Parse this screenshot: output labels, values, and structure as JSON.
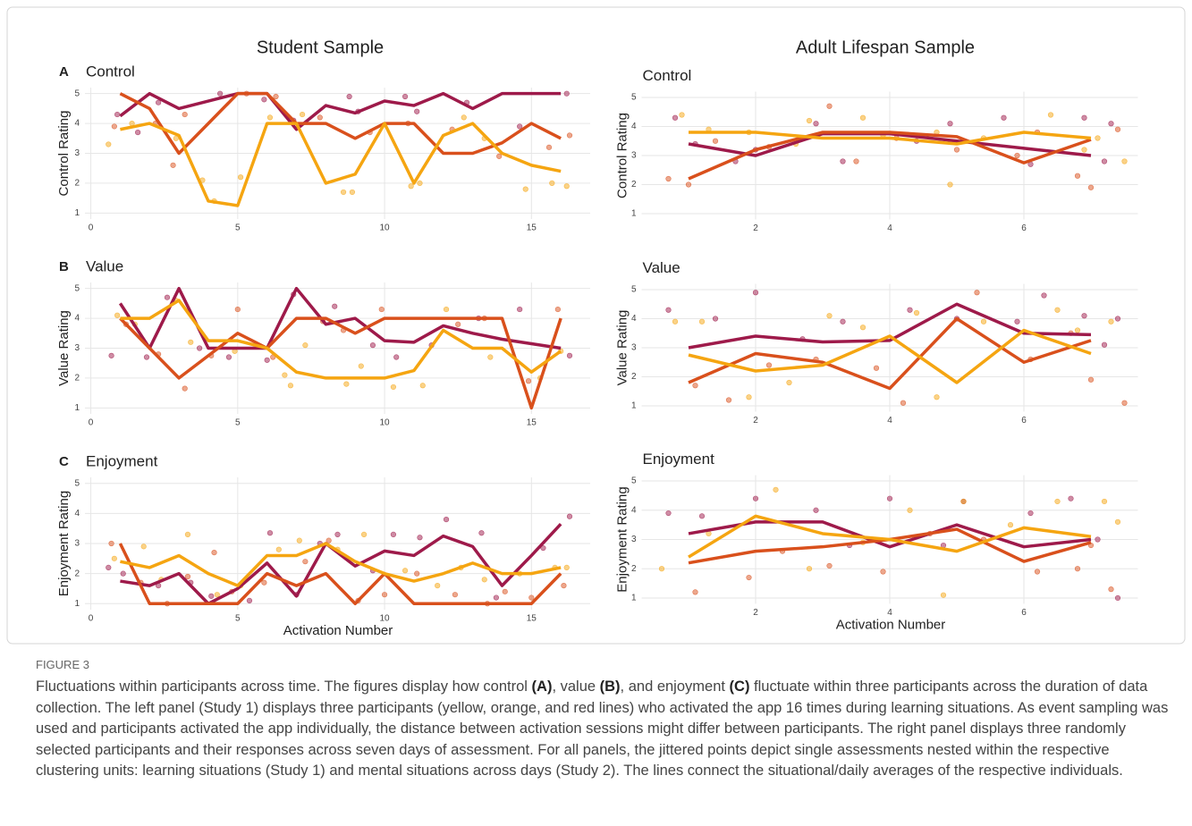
{
  "column_titles": [
    "Student Sample",
    "Adult Lifespan Sample"
  ],
  "figure_label": "FIGURE 3",
  "caption": [
    "Fluctuations within participants across time. The figures display how control ",
    "(A)",
    ", value ",
    "(B)",
    ", and enjoyment ",
    "(C)",
    " fluctuate within three participants across the duration of data collection. The left panel (Study 1) displays three participants (yellow, orange, and red lines) who activated the app 16 times during learning situations. As event sampling was used and participants activated the app individually, the distance between activation sessions might differ between participants. The right panel displays three randomly selected participants and their responses across seven days of assessment. For all panels, the jittered points depict single assessments nested within the respective clustering units: learning situations (Study 1) and mental situations across days (Study 2). The lines connect the situational/daily averages of the respective individuals."
  ],
  "chart_data": [
    {
      "type": "line",
      "panel": "A",
      "title": "Control",
      "ylabel": "Control Rating",
      "grid": true,
      "x": [
        1,
        2,
        3,
        4,
        5,
        6,
        7,
        8,
        9,
        10,
        11,
        12,
        13,
        14,
        15,
        16
      ],
      "xlim": [
        -0.2,
        17
      ],
      "xticks": [
        0,
        5,
        10,
        15
      ],
      "ylim": [
        0.8,
        5.2
      ],
      "yticks": [
        1,
        2,
        3,
        4,
        5
      ],
      "series": [
        {
          "color": "#9e1a4a",
          "values": [
            4.25,
            5,
            4.5,
            4.75,
            5,
            5,
            3.8,
            4.6,
            4.35,
            4.75,
            4.6,
            5,
            4.5,
            5,
            5,
            5
          ]
        },
        {
          "color": "#d9501c",
          "values": [
            5,
            4.5,
            3,
            4,
            5,
            5,
            4,
            4,
            3.5,
            4,
            4,
            3,
            3,
            3.35,
            4,
            3.5
          ]
        },
        {
          "color": "#f5a511",
          "values": [
            3.8,
            4,
            3.6,
            1.4,
            1.25,
            4,
            4,
            2,
            2.3,
            4,
            2,
            3.6,
            4,
            3,
            2.6,
            2.4
          ]
        }
      ],
      "points": [
        {
          "color": "#9e1a4a",
          "x": [
            0.9,
            1.6,
            2.3,
            4.4,
            5.9,
            6.9,
            8.8,
            9.1,
            10.7,
            11.1,
            12.8,
            14.6,
            16.2
          ],
          "y": [
            4.3,
            3.7,
            4.7,
            5,
            4.8,
            4.1,
            4.9,
            4.4,
            4.9,
            4.4,
            4.7,
            3.9,
            5
          ]
        },
        {
          "color": "#d9501c",
          "x": [
            0.8,
            2.2,
            2.8,
            3.2,
            5.3,
            6.3,
            7.8,
            9.5,
            10.8,
            12.3,
            13.9,
            15.6,
            16.3
          ],
          "y": [
            3.9,
            4,
            2.6,
            4.3,
            5,
            4.9,
            4.2,
            3.7,
            4,
            3.8,
            2.9,
            3.2,
            3.6
          ]
        },
        {
          "color": "#f5a511",
          "x": [
            0.6,
            1.4,
            2.9,
            3.8,
            4.2,
            5.1,
            6.1,
            7.2,
            8.6,
            8.9,
            10.9,
            11.2,
            12.7,
            13.4,
            14.8,
            15.7,
            16.2
          ],
          "y": [
            3.3,
            4,
            3.5,
            2.1,
            1.4,
            2.2,
            4.2,
            4.3,
            1.7,
            1.7,
            1.9,
            2,
            4.2,
            3.5,
            1.8,
            2,
            1.9
          ]
        }
      ]
    },
    {
      "type": "line",
      "panel": "B",
      "title": "Value",
      "ylabel": "Value Rating",
      "grid": true,
      "x": [
        1,
        2,
        3,
        4,
        5,
        6,
        7,
        8,
        9,
        10,
        11,
        12,
        13,
        14,
        15,
        16
      ],
      "xlim": [
        -0.2,
        17
      ],
      "xticks": [
        0,
        5,
        10,
        15
      ],
      "ylim": [
        0.8,
        5.2
      ],
      "yticks": [
        1,
        2,
        3,
        4,
        5
      ],
      "series": [
        {
          "color": "#9e1a4a",
          "values": [
            4.5,
            3,
            5,
            3,
            3,
            3,
            5,
            3.8,
            4,
            3.25,
            3.2,
            3.75,
            3.5,
            3.3,
            3.15,
            3
          ]
        },
        {
          "color": "#d9501c",
          "values": [
            4,
            3,
            2,
            2.75,
            3.5,
            3,
            4,
            4,
            3.5,
            4,
            4,
            4,
            4,
            4,
            1,
            4
          ]
        },
        {
          "color": "#f5a511",
          "values": [
            4,
            4,
            4.6,
            3.25,
            3.25,
            3,
            2.2,
            2,
            2,
            2,
            2.25,
            3.6,
            3,
            3,
            2.2,
            2.9
          ]
        }
      ],
      "points": [
        {
          "color": "#9e1a4a",
          "x": [
            0.7,
            1.9,
            2.6,
            3.7,
            4.7,
            6,
            6.9,
            8.3,
            9.6,
            10.4,
            11.6,
            13.2,
            14.6,
            16.3
          ],
          "y": [
            2.75,
            2.7,
            4.7,
            3,
            2.7,
            2.6,
            4.8,
            4.4,
            3.1,
            2.7,
            3.1,
            4,
            4.3,
            2.75
          ]
        },
        {
          "color": "#d9501c",
          "x": [
            1.2,
            2.3,
            3.2,
            4.1,
            5,
            6.2,
            7.9,
            8.6,
            9.9,
            12.5,
            13.4,
            14.9,
            15.9
          ],
          "y": [
            3.8,
            2.8,
            1.65,
            2.75,
            4.3,
            2.7,
            3.9,
            3.6,
            4.3,
            3.8,
            4,
            1.9,
            4.3
          ]
        },
        {
          "color": "#f5a511",
          "x": [
            0.9,
            1.5,
            2.9,
            3.4,
            4.9,
            6.6,
            6.8,
            7.3,
            8.7,
            9.2,
            10.3,
            11.3,
            12.1,
            13.6,
            15.3,
            16
          ],
          "y": [
            4.1,
            3.8,
            4.6,
            3.2,
            2.9,
            2.1,
            1.75,
            3.1,
            1.8,
            2.4,
            1.7,
            1.75,
            4.3,
            2.7,
            2,
            2.9
          ]
        }
      ]
    },
    {
      "type": "line",
      "panel": "C",
      "title": "Enjoyment",
      "ylabel": "Enjoyment Rating",
      "xlabel": "Activation Number",
      "grid": true,
      "x": [
        1,
        2,
        3,
        4,
        5,
        6,
        7,
        8,
        9,
        10,
        11,
        12,
        13,
        14,
        15,
        16
      ],
      "xlim": [
        -0.2,
        17
      ],
      "xticks": [
        0,
        5,
        10,
        15
      ],
      "ylim": [
        0.8,
        5.2
      ],
      "yticks": [
        1,
        2,
        3,
        4,
        5
      ],
      "series": [
        {
          "color": "#9e1a4a",
          "values": [
            1.75,
            1.6,
            2,
            1,
            1.5,
            2.35,
            1.25,
            3,
            2.25,
            2.75,
            2.6,
            3.25,
            2.9,
            1.6,
            2.6,
            3.65
          ]
        },
        {
          "color": "#d9501c",
          "values": [
            3,
            1,
            1,
            1,
            1,
            2,
            1.6,
            2,
            1,
            2,
            1,
            1,
            1,
            1,
            1,
            2
          ]
        },
        {
          "color": "#f5a511",
          "values": [
            2.4,
            2.2,
            2.6,
            2,
            1.6,
            2.6,
            2.6,
            3,
            2.4,
            2,
            1.75,
            2,
            2.35,
            2,
            2,
            2.2
          ]
        }
      ],
      "points": [
        {
          "color": "#9e1a4a",
          "x": [
            0.6,
            1.1,
            2.3,
            3.4,
            4.1,
            5.4,
            6.1,
            7,
            7.8,
            8.4,
            9.6,
            10.3,
            11.2,
            12.1,
            13.3,
            13.8,
            15.4,
            16.3
          ],
          "y": [
            2.2,
            2,
            1.6,
            1.7,
            1.25,
            1.1,
            3.35,
            1.3,
            3,
            3.3,
            2.1,
            3.3,
            3.2,
            3.8,
            3.35,
            1.2,
            2.85,
            3.9
          ]
        },
        {
          "color": "#d9501c",
          "x": [
            0.7,
            1.7,
            2.6,
            3.3,
            4.2,
            4.8,
            5.9,
            7.3,
            8.1,
            9.1,
            10,
            11.1,
            12.4,
            13.5,
            14.1,
            15,
            16.1
          ],
          "y": [
            3,
            1.7,
            1,
            1.9,
            2.7,
            1.4,
            1.7,
            2.4,
            3.1,
            1.1,
            1.3,
            2,
            1.3,
            1,
            1.4,
            1.2,
            1.6
          ]
        },
        {
          "color": "#f5a511",
          "x": [
            0.8,
            1.8,
            2.4,
            3.3,
            4.3,
            5.1,
            6.4,
            7.1,
            8.4,
            9.3,
            10.7,
            11.8,
            12.6,
            13.4,
            14.6,
            15.8,
            16.2
          ],
          "y": [
            2.5,
            2.9,
            1.8,
            3.3,
            1.3,
            1.6,
            2.8,
            3.1,
            2.8,
            3.3,
            2.1,
            1.6,
            2.2,
            1.8,
            2,
            2.2,
            2.2
          ]
        }
      ]
    },
    {
      "type": "line",
      "title": "Control",
      "ylabel": "Control Rating",
      "grid": true,
      "x": [
        1,
        2,
        3,
        4,
        5,
        6,
        7
      ],
      "xlim": [
        0.3,
        7.7
      ],
      "xticks": [
        2,
        4,
        6
      ],
      "ylim": [
        0.8,
        5.2
      ],
      "yticks": [
        1,
        2,
        3,
        4,
        5
      ],
      "series": [
        {
          "color": "#9e1a4a",
          "values": [
            3.4,
            3,
            3.75,
            3.75,
            3.5,
            3.25,
            3
          ]
        },
        {
          "color": "#d9501c",
          "values": [
            2.2,
            3.2,
            3.8,
            3.8,
            3.65,
            2.75,
            3.55
          ]
        },
        {
          "color": "#f5a511",
          "values": [
            3.8,
            3.8,
            3.6,
            3.6,
            3.4,
            3.8,
            3.6
          ]
        }
      ],
      "points": [
        {
          "color": "#9e1a4a",
          "x": [
            0.8,
            1.1,
            1.7,
            2,
            2.9,
            3.3,
            4.4,
            4.9,
            5.7,
            6.1,
            6.9,
            7.2,
            7.3
          ],
          "y": [
            4.3,
            3.4,
            2.8,
            3.2,
            4.1,
            2.8,
            3.5,
            4.1,
            4.3,
            2.7,
            4.3,
            2.8,
            4.1
          ]
        },
        {
          "color": "#d9501c",
          "x": [
            0.7,
            1,
            1.4,
            2.2,
            3.1,
            3.5,
            4.1,
            5,
            5.9,
            6.2,
            6.8,
            7,
            7.4
          ],
          "y": [
            2.2,
            2,
            3.5,
            3.3,
            4.7,
            2.8,
            3.6,
            3.2,
            3,
            3.8,
            2.3,
            1.9,
            3.9
          ]
        },
        {
          "color": "#f5a511",
          "x": [
            0.9,
            1.3,
            1.9,
            2.6,
            2.8,
            3.6,
            3.9,
            4.7,
            4.9,
            5.4,
            6.4,
            6.9,
            7.1,
            7.5
          ],
          "y": [
            4.4,
            3.9,
            3.8,
            3.4,
            4.2,
            4.3,
            3.7,
            3.8,
            2,
            3.6,
            4.4,
            3.2,
            3.6,
            2.8
          ]
        }
      ]
    },
    {
      "type": "line",
      "title": "Value",
      "ylabel": "Value Rating",
      "grid": true,
      "x": [
        1,
        2,
        3,
        4,
        5,
        6,
        7
      ],
      "xlim": [
        0.3,
        7.7
      ],
      "xticks": [
        2,
        4,
        6
      ],
      "ylim": [
        0.8,
        5.2
      ],
      "yticks": [
        1,
        2,
        3,
        4,
        5
      ],
      "series": [
        {
          "color": "#9e1a4a",
          "values": [
            3,
            3.4,
            3.2,
            3.25,
            4.5,
            3.5,
            3.45
          ]
        },
        {
          "color": "#d9501c",
          "values": [
            1.8,
            2.8,
            2.5,
            1.6,
            4,
            2.5,
            3.25
          ]
        },
        {
          "color": "#f5a511",
          "values": [
            2.75,
            2.2,
            2.4,
            3.4,
            1.8,
            3.6,
            2.8
          ]
        }
      ],
      "points": [
        {
          "color": "#9e1a4a",
          "x": [
            0.7,
            1.4,
            2,
            2.7,
            3.3,
            4.3,
            5,
            5.9,
            6.3,
            6.9,
            7.2,
            7.4
          ],
          "y": [
            4.3,
            4,
            4.9,
            3.3,
            3.9,
            4.3,
            4,
            3.9,
            4.8,
            4.1,
            3.1,
            4
          ]
        },
        {
          "color": "#d9501c",
          "x": [
            1.1,
            1.6,
            2.2,
            2.9,
            3.8,
            4.2,
            5.3,
            6.1,
            6.7,
            7,
            7.5
          ],
          "y": [
            1.7,
            1.2,
            2.4,
            2.6,
            2.3,
            1.1,
            4.9,
            2.6,
            3.5,
            1.9,
            1.1
          ]
        },
        {
          "color": "#f5a511",
          "x": [
            0.8,
            1.2,
            1.9,
            2.5,
            3.1,
            3.6,
            4.4,
            4.7,
            5.4,
            6.5,
            6.8,
            7.3
          ],
          "y": [
            3.9,
            3.9,
            1.3,
            1.8,
            4.1,
            3.7,
            4.2,
            1.3,
            3.9,
            4.3,
            3.6,
            3.9
          ]
        }
      ]
    },
    {
      "type": "line",
      "title": "Enjoyment",
      "ylabel": "Enjoyment Rating",
      "xlabel": "Activation Number",
      "grid": true,
      "x": [
        1,
        2,
        3,
        4,
        5,
        6,
        7
      ],
      "xlim": [
        0.3,
        7.7
      ],
      "xticks": [
        2,
        4,
        6
      ],
      "ylim": [
        0.8,
        5.2
      ],
      "yticks": [
        1,
        2,
        3,
        4,
        5
      ],
      "series": [
        {
          "color": "#9e1a4a",
          "values": [
            3.2,
            3.6,
            3.6,
            2.75,
            3.5,
            2.75,
            3
          ]
        },
        {
          "color": "#d9501c",
          "values": [
            2.2,
            2.6,
            2.75,
            3,
            3.35,
            2.25,
            2.9
          ]
        },
        {
          "color": "#f5a511",
          "values": [
            2.4,
            3.8,
            3.2,
            3,
            2.6,
            3.4,
            3.1
          ]
        }
      ],
      "points": [
        {
          "color": "#9e1a4a",
          "x": [
            0.7,
            1.2,
            2,
            2.9,
            3.4,
            4,
            4.8,
            5.1,
            6.1,
            6.7,
            7.1,
            7.4
          ],
          "y": [
            3.9,
            3.8,
            4.4,
            4,
            2.8,
            4.4,
            2.8,
            4.3,
            3.9,
            4.4,
            3,
            1
          ]
        },
        {
          "color": "#d9501c",
          "x": [
            1.1,
            1.9,
            2.4,
            3.1,
            3.9,
            4.6,
            5.4,
            6.2,
            6.8,
            7,
            7.3
          ],
          "y": [
            1.2,
            1.7,
            2.6,
            2.1,
            1.9,
            3.2,
            3,
            1.9,
            2,
            2.8,
            1.3
          ]
        },
        {
          "color": "#f5a511",
          "x": [
            0.6,
            1.3,
            2.3,
            2.8,
            3.6,
            4.3,
            4.8,
            5.1,
            5.8,
            6.5,
            7.2,
            7.4
          ],
          "y": [
            2,
            3.2,
            4.7,
            2,
            2.9,
            4,
            1.1,
            4.3,
            3.5,
            4.3,
            4.3,
            3.6
          ]
        }
      ]
    }
  ]
}
